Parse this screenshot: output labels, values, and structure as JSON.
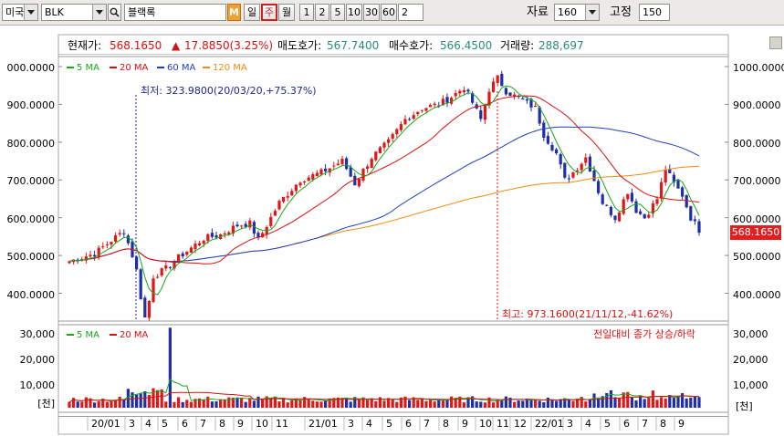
{
  "toolbar": {
    "market": "미국",
    "symbol": "BLK",
    "name": "블랙록",
    "m_label": "M",
    "periods": [
      "일",
      "주",
      "월"
    ],
    "active_period": "주",
    "ticks": [
      "1",
      "2",
      "5",
      "10",
      "30",
      "60"
    ],
    "tick_input": "2",
    "data_label": "자료",
    "data_value": "160",
    "fixed_label": "고정",
    "fixed_value": "150"
  },
  "info": {
    "current_label": "현재가:",
    "current_value": "568.1650",
    "change_value": "17.8850(3.25%)",
    "ask_label": "매도호가:",
    "ask_value": "567.7400",
    "bid_label": "매수호가:",
    "bid_value": "566.4500",
    "volume_label": "거래량:",
    "volume_value": "288,697"
  },
  "colors": {
    "up": "#e01818",
    "down": "#1f2fa8",
    "ma5": "#18a818",
    "ma20": "#d81010",
    "ma60": "#1f3fc0",
    "ma120": "#f08c10"
  },
  "price_legend": [
    "5 MA",
    "20 MA",
    "60 MA",
    "120 MA"
  ],
  "volume_legend": [
    "5 MA",
    "20 MA"
  ],
  "volume_note": "전일대비 종가 상승/하락",
  "low_annotation": "최저: 323.9800(20/03/20,+75.37%)",
  "high_annotation": "최고: 973.1600(21/11/12,-41.62%)",
  "current_price_tag": "568.1650",
  "price_axis_left": [
    "000.0000",
    "900.0000",
    "800.0000",
    "700.0000",
    "600.0000",
    "500.0000",
    "400.0000"
  ],
  "price_axis_right": [
    "1000.0000",
    "900.0000",
    "800.0000",
    "700.0000",
    "600.0000",
    "500.0000",
    "400.0000"
  ],
  "volume_axis": [
    "30,000",
    "20,000",
    "10,000"
  ],
  "volume_unit": "[천]",
  "months": [
    "20/01",
    "3",
    "4",
    "5",
    "6",
    "7",
    "8",
    "9",
    "10",
    "11",
    "21/01",
    "3",
    "4",
    "5",
    "6",
    "7",
    "8",
    "9",
    "10",
    "11",
    "12",
    "22/01",
    "3",
    "4",
    "5",
    "6",
    "7",
    "8",
    "9"
  ]
}
